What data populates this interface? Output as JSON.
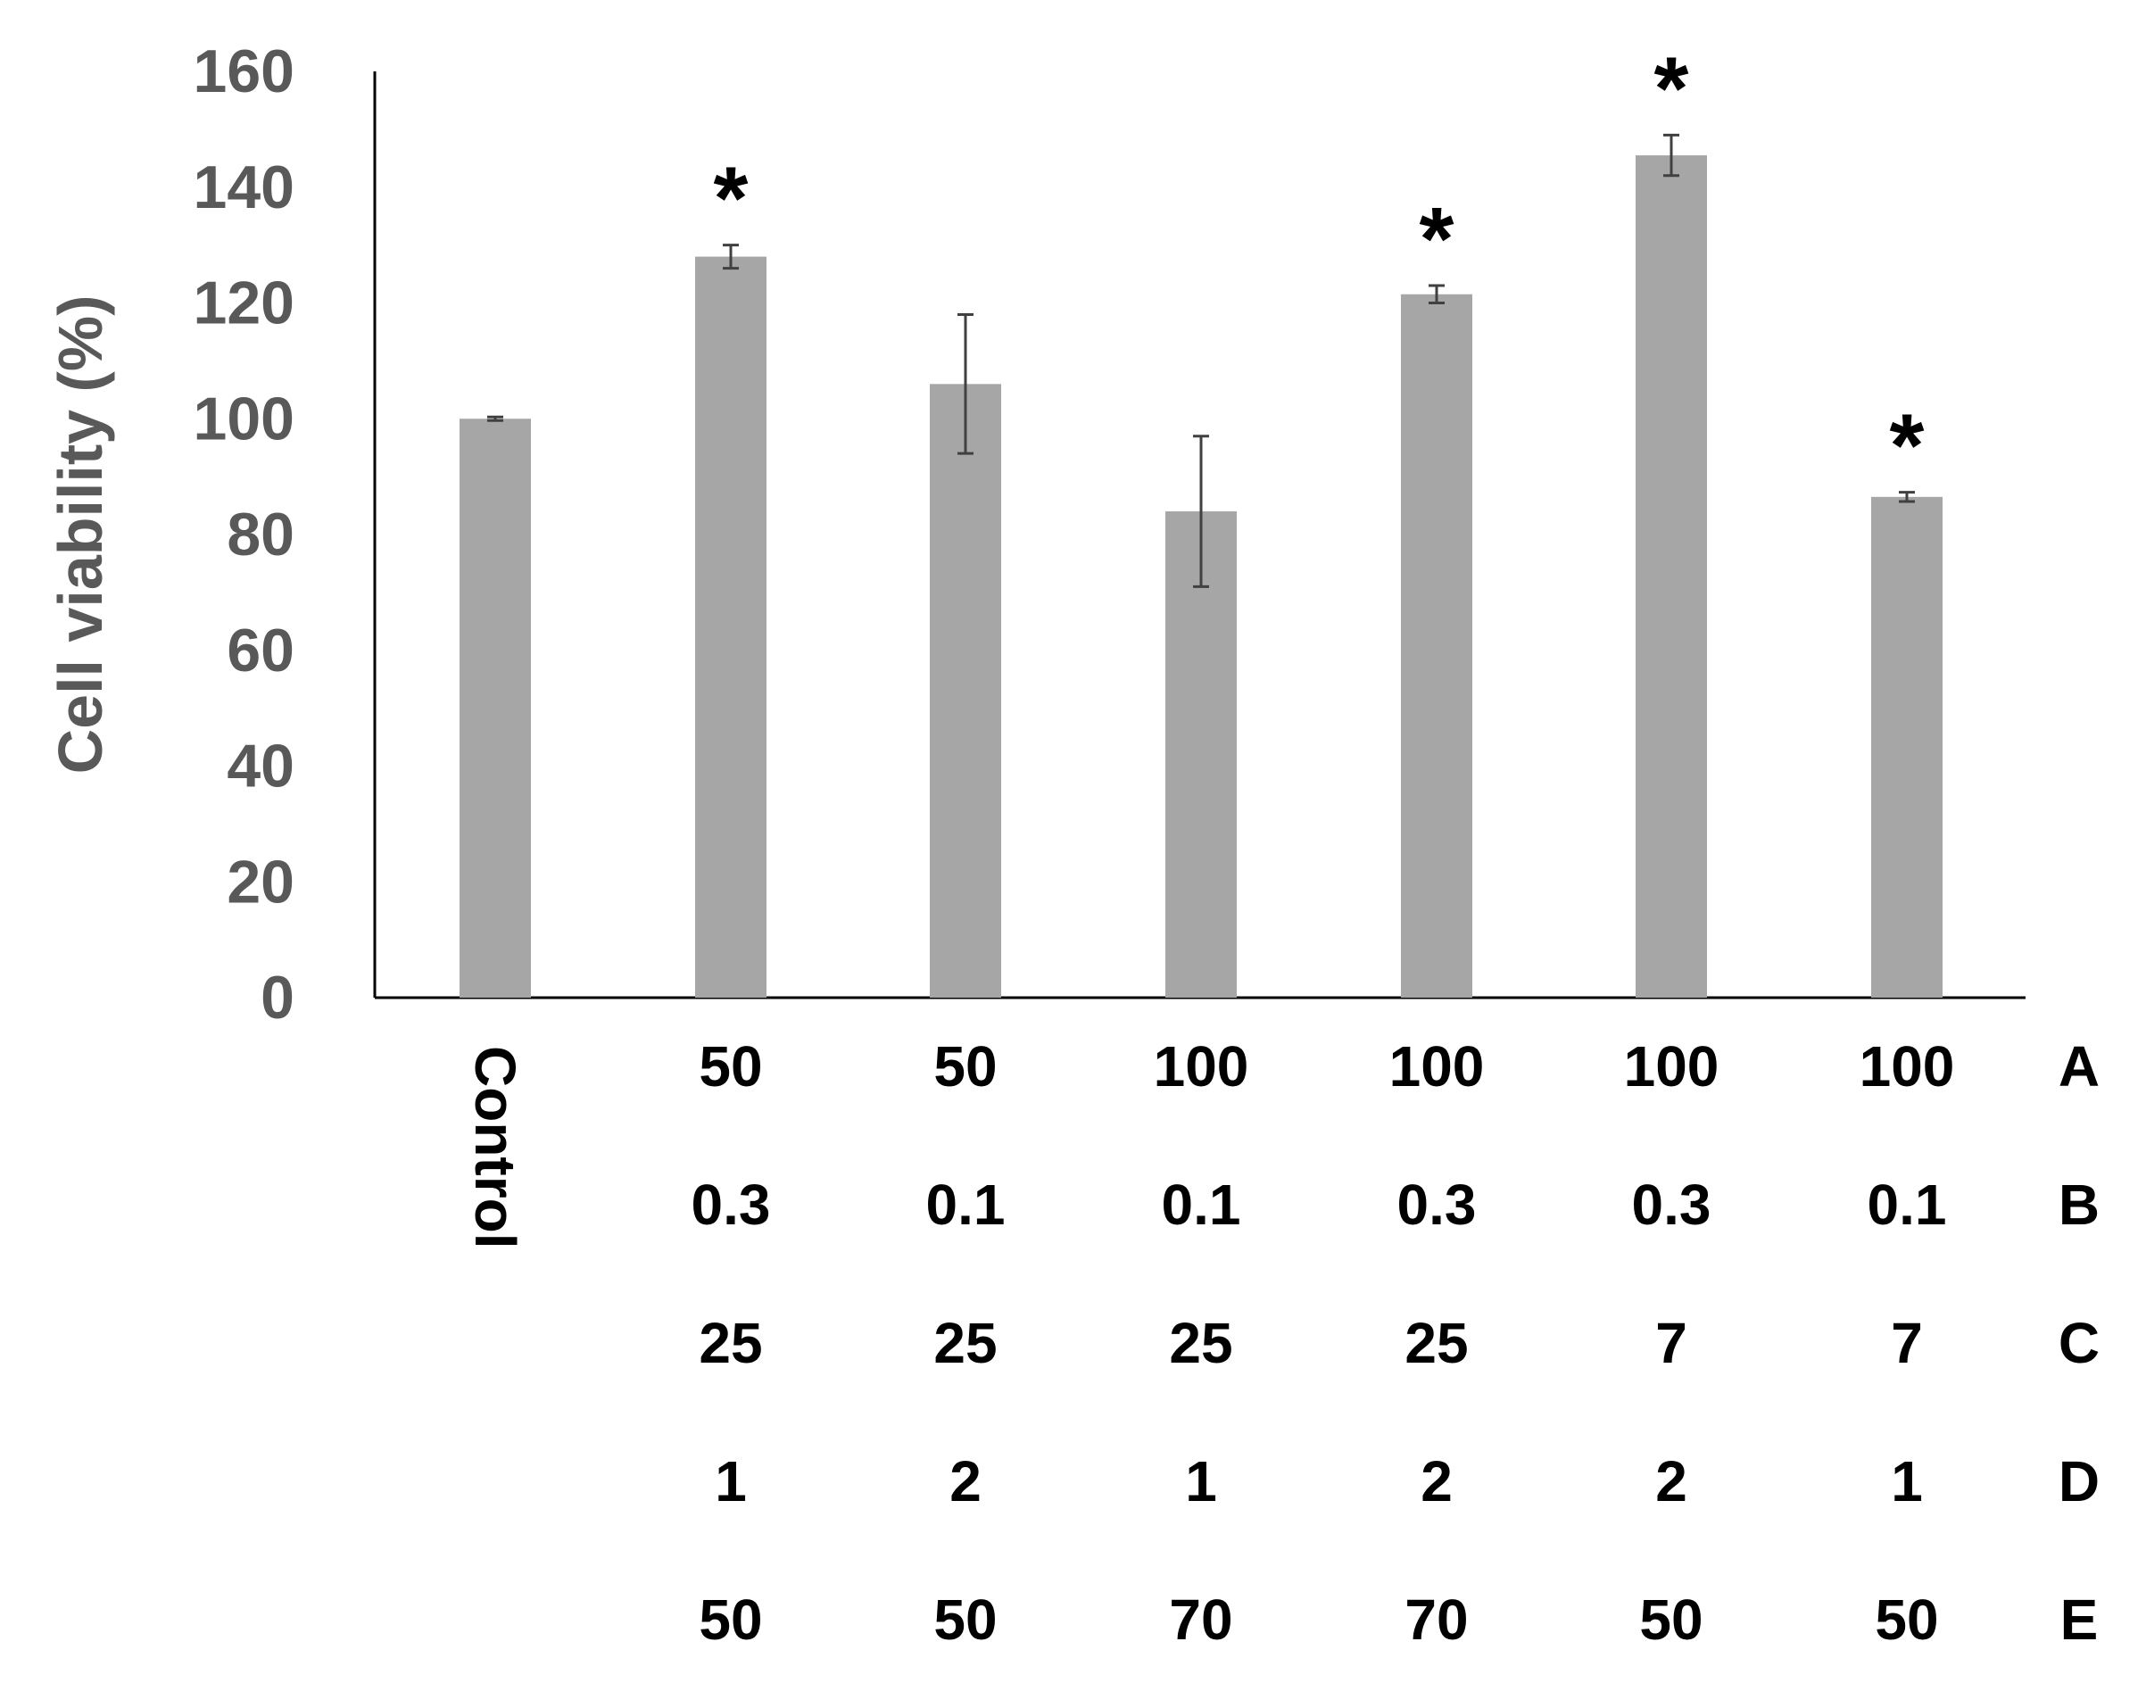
{
  "chart_data": {
    "type": "bar",
    "ylabel": "Cell viability (%)",
    "ylim": [
      0,
      160
    ],
    "yticks": [
      0,
      20,
      40,
      60,
      80,
      100,
      120,
      140,
      160
    ],
    "categories": [
      "Control",
      "",
      "",
      "",
      "",
      "",
      ""
    ],
    "values": [
      100,
      128,
      106,
      84,
      121.5,
      145.5,
      86.5
    ],
    "error": [
      0.3,
      2,
      12,
      13,
      1.5,
      3.5,
      0.8
    ],
    "significance": [
      "",
      "*",
      "",
      "",
      "*",
      "*",
      "*"
    ],
    "bar_color": "#a6a6a6",
    "error_color": "#404040",
    "axis_color": "#000000",
    "grid": false,
    "factor_table": {
      "rows": [
        {
          "label": "A",
          "values": [
            "50",
            "50",
            "100",
            "100",
            "100",
            "100"
          ]
        },
        {
          "label": "B",
          "values": [
            "0.3",
            "0.1",
            "0.1",
            "0.3",
            "0.3",
            "0.1"
          ]
        },
        {
          "label": "C",
          "values": [
            "25",
            "25",
            "25",
            "25",
            "7",
            "7"
          ]
        },
        {
          "label": "D",
          "values": [
            "1",
            "2",
            "1",
            "2",
            "2",
            "1"
          ]
        },
        {
          "label": "E",
          "values": [
            "50",
            "50",
            "70",
            "70",
            "50",
            "50"
          ]
        }
      ]
    }
  }
}
